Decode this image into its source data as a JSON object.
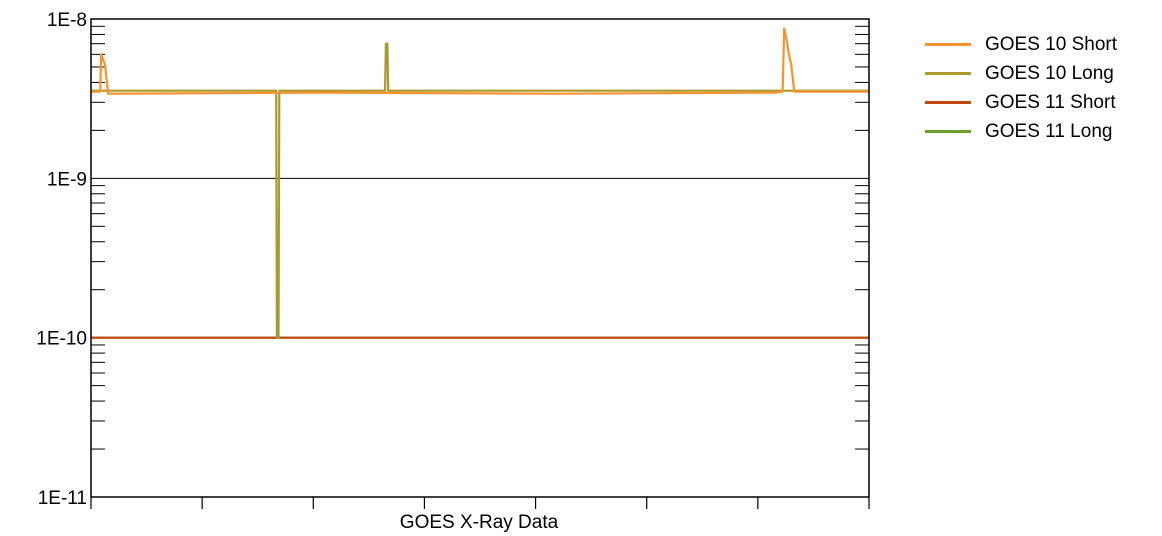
{
  "chart_data": {
    "type": "line",
    "title": "",
    "xlabel": "GOES X-Ray Data",
    "ylabel": "",
    "y_scale": "log",
    "ylim": [
      1e-11,
      1e-08
    ],
    "xlim": [
      0,
      1
    ],
    "grid": "major horizontal",
    "legend_position": "right",
    "y_tick_labels": [
      "1E-8",
      "1E-9",
      "1E-10",
      "1E-11"
    ],
    "series": [
      {
        "name": "GOES 10 Short",
        "color": "#F7922F",
        "points": [
          [
            0.0,
            3.5e-09
          ],
          [
            0.012,
            3.5e-09
          ],
          [
            0.013,
            6e-09
          ],
          [
            0.016,
            5.5e-09
          ],
          [
            0.018,
            5.2e-09
          ],
          [
            0.022,
            3.4e-09
          ],
          [
            0.3,
            3.45e-09
          ],
          [
            0.6,
            3.4e-09
          ],
          [
            0.88,
            3.45e-09
          ],
          [
            0.889,
            3.5e-09
          ],
          [
            0.891,
            8.7e-09
          ],
          [
            0.894,
            7.5e-09
          ],
          [
            0.897,
            6e-09
          ],
          [
            0.9,
            5.2e-09
          ],
          [
            0.904,
            3.5e-09
          ],
          [
            1.0,
            3.5e-09
          ]
        ]
      },
      {
        "name": "GOES 10 Long",
        "color": "#A89A2C",
        "points": [
          [
            0.0,
            3.55e-09
          ],
          [
            0.238,
            3.55e-09
          ],
          [
            0.239,
            1e-10
          ],
          [
            0.241,
            1e-10
          ],
          [
            0.242,
            3.55e-09
          ],
          [
            0.378,
            3.55e-09
          ],
          [
            0.379,
            7e-09
          ],
          [
            0.381,
            7e-09
          ],
          [
            0.382,
            3.55e-09
          ],
          [
            1.0,
            3.55e-09
          ]
        ]
      },
      {
        "name": "GOES 11 Short",
        "color": "#C2470F",
        "points": [
          [
            0.0,
            1e-10
          ],
          [
            1.0,
            1e-10
          ]
        ]
      },
      {
        "name": "GOES 11 Long",
        "color": "#6E9E2E",
        "points": [
          [
            0.0,
            1e-10
          ],
          [
            1.0,
            1e-10
          ]
        ]
      }
    ]
  }
}
